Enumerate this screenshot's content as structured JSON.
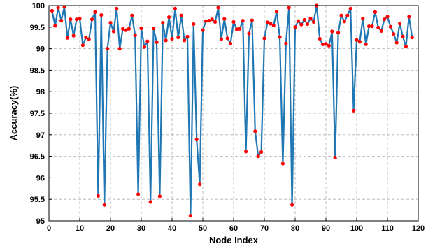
{
  "chart_data": {
    "type": "line",
    "xlabel": "Node Index",
    "ylabel": "Accuracy(%)",
    "xlim": [
      0,
      120
    ],
    "ylim": [
      95,
      100
    ],
    "x_ticks": [
      0,
      10,
      20,
      30,
      40,
      50,
      60,
      70,
      80,
      90,
      100,
      110,
      120
    ],
    "y_ticks": [
      95,
      95.5,
      96,
      96.5,
      97,
      97.5,
      98,
      98.5,
      99,
      99.5,
      100
    ],
    "y_tick_labels": [
      "95",
      "95.5",
      "96",
      "96.5",
      "97",
      "97.5",
      "98",
      "98.5",
      "99",
      "99.5",
      "100"
    ],
    "grid": true,
    "line_color": "#1f77b4",
    "marker_color": "#ff0000",
    "series": [
      {
        "x": [
          1,
          2,
          3,
          4,
          5,
          6,
          7,
          8,
          9,
          10,
          11,
          12,
          13,
          14,
          15,
          16,
          17,
          18,
          19,
          20,
          21,
          22,
          23,
          24,
          25,
          26,
          27,
          28,
          29,
          30,
          31,
          32,
          33,
          34,
          35,
          36,
          37,
          38,
          39,
          40,
          41,
          42,
          43,
          44,
          45,
          46,
          47,
          48,
          49,
          50,
          51,
          52,
          53,
          54,
          55,
          56,
          57,
          58,
          59,
          60,
          61,
          62,
          63,
          64,
          65,
          66,
          67,
          68,
          69,
          70,
          71,
          72,
          73,
          74,
          75,
          76,
          77,
          78,
          79,
          80,
          81,
          82,
          83,
          84,
          85,
          86,
          87,
          88,
          89,
          90,
          91,
          92,
          93,
          94,
          95,
          96,
          97,
          98,
          99,
          100,
          101,
          102,
          103,
          104,
          105,
          106,
          107,
          108,
          109,
          110,
          111,
          112,
          113,
          114,
          115,
          116,
          117,
          118
        ],
        "values": [
          99.88,
          99.53,
          99.95,
          99.65,
          99.97,
          99.25,
          99.68,
          99.3,
          99.68,
          99.7,
          99.08,
          99.26,
          99.22,
          99.68,
          99.85,
          95.58,
          99.78,
          95.37,
          99.0,
          99.6,
          99.4,
          99.93,
          99.0,
          99.46,
          99.43,
          99.46,
          99.77,
          99.31,
          95.62,
          99.47,
          99.04,
          99.17,
          95.44,
          99.47,
          99.15,
          95.57,
          99.6,
          99.19,
          99.73,
          99.23,
          99.93,
          99.26,
          99.77,
          99.19,
          99.28,
          95.12,
          99.57,
          96.89,
          95.85,
          99.43,
          99.64,
          99.65,
          99.68,
          99.62,
          99.95,
          99.22,
          99.69,
          99.24,
          99.12,
          99.62,
          99.45,
          99.46,
          99.65,
          96.61,
          99.35,
          99.66,
          97.08,
          96.5,
          96.6,
          99.24,
          99.61,
          99.58,
          99.54,
          99.86,
          99.27,
          96.33,
          99.12,
          99.95,
          95.37,
          99.5,
          99.64,
          99.56,
          99.67,
          99.57,
          99.7,
          99.62,
          100.0,
          99.23,
          99.1,
          99.11,
          99.07,
          99.4,
          96.47,
          99.37,
          99.77,
          99.63,
          99.77,
          99.93,
          97.56,
          99.2,
          99.16,
          99.7,
          99.1,
          99.52,
          99.52,
          99.85,
          99.49,
          99.41,
          99.68,
          99.74,
          99.51,
          99.34,
          99.14,
          99.58,
          99.28,
          99.05,
          99.74,
          99.26
        ]
      }
    ]
  }
}
